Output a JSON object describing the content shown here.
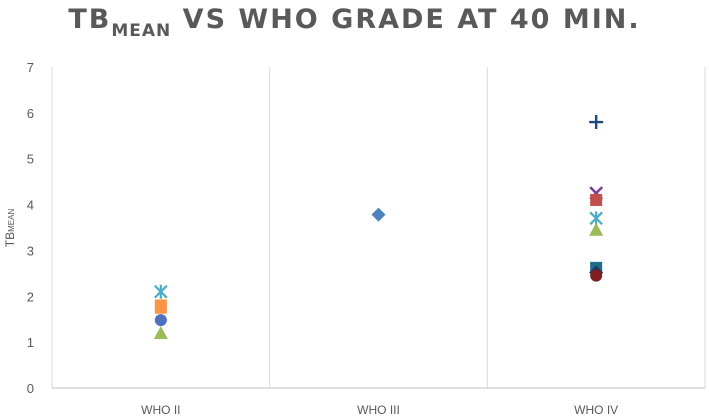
{
  "chart_data": {
    "type": "scatter",
    "title": {
      "main": "TB",
      "subscript": "MEAN",
      "rest": " VS WHO GRADE AT 40 MIN."
    },
    "ylabel": {
      "main": "TB",
      "subscript": "MEAN"
    },
    "xlabel": "",
    "categories": [
      "WHO II",
      "WHO III",
      "WHO IV"
    ],
    "ylim": [
      0,
      7
    ],
    "yticks": [
      "0",
      "1",
      "2",
      "3",
      "4",
      "5",
      "6",
      "7"
    ],
    "grid": {
      "vertical": true,
      "horizontal": false
    },
    "legend": "none",
    "points": [
      {
        "category": "WHO II",
        "value": 2.1,
        "marker": "asterisk",
        "color": "#4BACC6"
      },
      {
        "category": "WHO II",
        "value": 1.8,
        "marker": "square",
        "color": "#F79646"
      },
      {
        "category": "WHO II",
        "value": 1.75,
        "marker": "square",
        "color": "#F79646"
      },
      {
        "category": "WHO II",
        "value": 1.48,
        "marker": "circle",
        "color": "#4F6FBF"
      },
      {
        "category": "WHO II",
        "value": 1.2,
        "marker": "triangle",
        "color": "#9BBB59"
      },
      {
        "category": "WHO III",
        "value": 3.78,
        "marker": "diamond",
        "color": "#4F81BD"
      },
      {
        "category": "WHO IV",
        "value": 5.8,
        "marker": "plus",
        "color": "#1F497D"
      },
      {
        "category": "WHO IV",
        "value": 4.25,
        "marker": "x",
        "color": "#7F3F98"
      },
      {
        "category": "WHO IV",
        "value": 4.1,
        "marker": "square",
        "color": "#C0504D"
      },
      {
        "category": "WHO IV",
        "value": 3.7,
        "marker": "asterisk",
        "color": "#4BACC6"
      },
      {
        "category": "WHO IV",
        "value": 3.45,
        "marker": "triangle",
        "color": "#9BBB59"
      },
      {
        "category": "WHO IV",
        "value": 2.62,
        "marker": "square",
        "color": "#1F6F8B"
      },
      {
        "category": "WHO IV",
        "value": 2.52,
        "marker": "diamond",
        "color": "#1F3864"
      },
      {
        "category": "WHO IV",
        "value": 2.45,
        "marker": "circle",
        "color": "#7F2020"
      }
    ]
  }
}
